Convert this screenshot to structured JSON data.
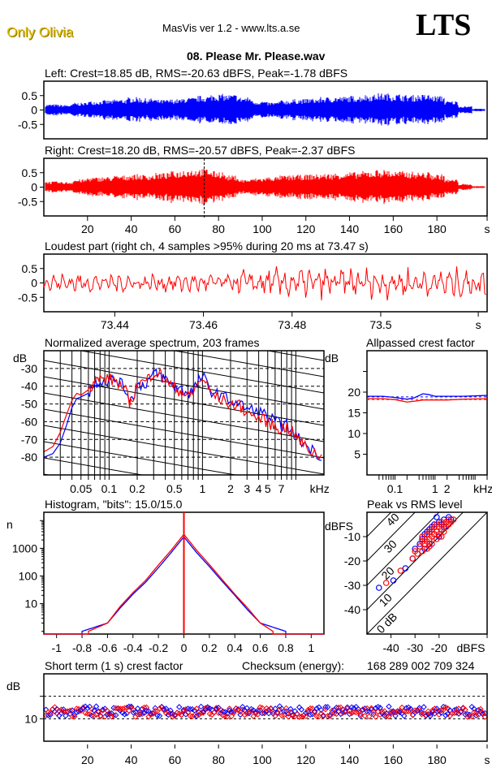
{
  "header": {
    "brand": "Only Olivia",
    "app_title": "MasVis ver 1.2 - www.lts.a.se",
    "logo": "LTS",
    "file_name": "08. Please Mr. Please.wav"
  },
  "colors": {
    "left": "#0000ff",
    "right": "#ff0000",
    "axis": "#000000",
    "brand": "#e8c400"
  },
  "chart_data": [
    {
      "id": "left-waveform",
      "type": "area",
      "title": "Left: Crest=18.85 dB, RMS=-20.63 dBFS, Peak=-1.78 dBFS",
      "channel": "left",
      "ylim": [
        -1,
        1
      ],
      "yticks": [
        "0.5",
        "0",
        "-0.5"
      ],
      "ytick_values": [
        0.5,
        0,
        -0.5
      ],
      "xlim": [
        0,
        203
      ],
      "envelope": [
        0.22,
        0.2,
        0.28,
        0.35,
        0.38,
        0.42,
        0.5,
        0.45,
        0.4,
        0.42,
        0.48,
        0.55,
        0.62,
        0.6,
        0.5,
        0.35,
        0.3,
        0.38,
        0.42,
        0.45,
        0.5,
        0.52,
        0.55,
        0.6,
        0.65,
        0.62,
        0.58,
        0.6,
        0.55,
        0.35,
        0.15,
        0.05
      ]
    },
    {
      "id": "right-waveform",
      "type": "area",
      "title": "Right: Crest=18.20 dB, RMS=-20.57 dBFS, Peak=-2.37 dBFS",
      "channel": "right",
      "ylim": [
        -1,
        1
      ],
      "yticks": [
        "0.5",
        "0",
        "-0.5"
      ],
      "ytick_values": [
        0.5,
        0,
        -0.5
      ],
      "xlim": [
        0,
        203
      ],
      "xticks": [
        "20",
        "40",
        "60",
        "80",
        "100",
        "120",
        "140",
        "160",
        "180",
        "s"
      ],
      "xtick_values": [
        20,
        40,
        60,
        80,
        100,
        120,
        140,
        160,
        180,
        203
      ],
      "marker_time": 73.47,
      "envelope": [
        0.22,
        0.2,
        0.3,
        0.38,
        0.4,
        0.45,
        0.5,
        0.48,
        0.55,
        0.62,
        0.7,
        0.72,
        0.62,
        0.45,
        0.3,
        0.35,
        0.4,
        0.45,
        0.48,
        0.5,
        0.52,
        0.55,
        0.58,
        0.62,
        0.68,
        0.62,
        0.6,
        0.58,
        0.5,
        0.3,
        0.12,
        0.04
      ]
    },
    {
      "id": "loudest-part",
      "type": "line",
      "title": "Loudest part (right ch, 4 samples >95% during 20 ms at 73.47 s)",
      "ylim": [
        -1,
        1
      ],
      "yticks": [
        "0.5",
        "0",
        "-0.5"
      ],
      "ytick_values": [
        0.5,
        0,
        -0.5
      ],
      "xlim": [
        73.424,
        73.524
      ],
      "xticks": [
        "73.44",
        "73.46",
        "73.48",
        "73.5",
        "s"
      ],
      "xtick_values": [
        73.44,
        73.46,
        73.48,
        73.5,
        73.522
      ]
    },
    {
      "id": "spectrum",
      "type": "line",
      "title": "Normalized average spectrum, 203 frames",
      "ylabel": "dB",
      "xlabel": "kHz",
      "ylim": [
        -90,
        -20
      ],
      "yticks": [
        "-30",
        "-40",
        "-50",
        "-60",
        "-70",
        "-80"
      ],
      "ytick_values": [
        -30,
        -40,
        -50,
        -60,
        -70,
        -80
      ],
      "xlim_hz": [
        20,
        20000
      ],
      "xticks": [
        "0.05",
        "0.1",
        "0.2",
        "0.5",
        "1",
        "2",
        "3",
        "4",
        "5",
        "7",
        "kHz"
      ],
      "xtick_values_hz": [
        50,
        100,
        200,
        500,
        1000,
        2000,
        3000,
        4000,
        5000,
        7000,
        18000
      ],
      "series": [
        {
          "name": "left",
          "freq_hz": [
            20,
            25,
            30,
            35,
            40,
            45,
            50,
            60,
            70,
            80,
            100,
            120,
            150,
            170,
            200,
            250,
            300,
            350,
            400,
            500,
            600,
            700,
            800,
            1000,
            1200,
            1500,
            2000,
            2500,
            3000,
            4000,
            5000,
            6000,
            7000,
            8000,
            10000,
            12000,
            15000,
            20000
          ],
          "db": [
            -80,
            -78,
            -72,
            -62,
            -52,
            -47,
            -46,
            -44,
            -38,
            -37,
            -37,
            -36,
            -42,
            -48,
            -40,
            -38,
            -33,
            -34,
            -36,
            -40,
            -42,
            -44,
            -42,
            -34,
            -42,
            -45,
            -48,
            -50,
            -53,
            -54,
            -57,
            -60,
            -62,
            -62,
            -68,
            -72,
            -76,
            -80
          ]
        },
        {
          "name": "right",
          "freq_hz": [
            20,
            25,
            30,
            35,
            40,
            45,
            50,
            60,
            70,
            80,
            100,
            120,
            150,
            170,
            200,
            250,
            300,
            350,
            400,
            500,
            600,
            700,
            800,
            1000,
            1200,
            1500,
            2000,
            2500,
            3000,
            4000,
            5000,
            6000,
            7000,
            8000,
            10000,
            12000,
            15000,
            20000
          ],
          "db": [
            -77,
            -74,
            -66,
            -56,
            -48,
            -44,
            -45,
            -42,
            -37,
            -36,
            -36,
            -37,
            -43,
            -50,
            -39,
            -37,
            -32,
            -33,
            -37,
            -41,
            -43,
            -46,
            -43,
            -35,
            -43,
            -47,
            -50,
            -51,
            -55,
            -58,
            -60,
            -63,
            -64,
            -63,
            -68,
            -73,
            -77,
            -80
          ]
        }
      ]
    },
    {
      "id": "allpassed-crest",
      "type": "line",
      "title": "Allpassed crest factor",
      "ylabel": "dB",
      "xlabel": "kHz",
      "ylim": [
        0,
        30
      ],
      "yticks": [
        "20",
        "15",
        "10",
        "5"
      ],
      "ytick_values": [
        20,
        15,
        10,
        5
      ],
      "xticks": [
        "0.1",
        "1",
        "2",
        "kHz"
      ],
      "xtick_values_hz": [
        100,
        1000,
        2000,
        16000
      ],
      "series": [
        {
          "name": "left",
          "freq_hz": [
            20,
            50,
            100,
            200,
            300,
            500,
            700,
            1000,
            2000,
            5000,
            20000
          ],
          "db": [
            19.0,
            19.0,
            18.7,
            18.3,
            18.6,
            19.6,
            19.4,
            19.0,
            19.0,
            19.0,
            19.2
          ],
          "reference": 18.85
        },
        {
          "name": "right",
          "freq_hz": [
            20,
            50,
            100,
            200,
            300,
            500,
            700,
            1000,
            2000,
            5000,
            20000
          ],
          "db": [
            18.4,
            18.4,
            18.2,
            17.6,
            17.8,
            18.1,
            18.1,
            18.1,
            18.1,
            18.3,
            18.4
          ],
          "reference": 18.2
        }
      ]
    },
    {
      "id": "histogram",
      "type": "line",
      "title": "Histogram, \"bits\": 15.0/15.0",
      "ylabel": "n",
      "yscale": "log",
      "ylim": [
        0.8,
        20000
      ],
      "yticks": [
        "1000",
        "100",
        "10"
      ],
      "ytick_values": [
        1000,
        100,
        10
      ],
      "xlim": [
        -1.1,
        1.1
      ],
      "xticks": [
        "-1",
        "-0.8",
        "-0.6",
        "-0.4",
        "-0.2",
        "0",
        "0.2",
        "0.4",
        "0.6",
        "0.8",
        "1"
      ],
      "xtick_values": [
        -1,
        -0.8,
        -0.6,
        -0.4,
        -0.2,
        0,
        0.2,
        0.4,
        0.6,
        0.8,
        1
      ],
      "series": [
        {
          "name": "left",
          "x": [
            -0.8,
            -0.6,
            -0.5,
            -0.4,
            -0.3,
            -0.2,
            -0.1,
            0,
            0.1,
            0.2,
            0.3,
            0.4,
            0.5,
            0.6,
            0.8
          ],
          "n": [
            1,
            2,
            7,
            22,
            60,
            200,
            700,
            2600,
            700,
            220,
            65,
            20,
            6,
            2,
            1
          ]
        },
        {
          "name": "right",
          "x": [
            -0.75,
            -0.6,
            -0.5,
            -0.4,
            -0.3,
            -0.2,
            -0.1,
            0,
            0.1,
            0.2,
            0.3,
            0.4,
            0.5,
            0.6,
            0.7
          ],
          "n": [
            1,
            2,
            8,
            25,
            70,
            250,
            850,
            3200,
            850,
            260,
            75,
            22,
            7,
            2,
            1
          ]
        }
      ]
    },
    {
      "id": "peak-vs-rms",
      "type": "scatter",
      "title": "Peak vs RMS level",
      "xlabel": "dBFS",
      "ylabel": "dBFS",
      "xlim": [
        -50,
        0
      ],
      "ylim": [
        -50,
        0
      ],
      "xticks": [
        "-40",
        "-30",
        "-20",
        "dBFS"
      ],
      "xtick_values": [
        -40,
        -30,
        -20,
        0
      ],
      "yticks": [
        "-10",
        "-20",
        "-30",
        "-40"
      ],
      "ytick_values": [
        -10,
        -20,
        -30,
        -40
      ],
      "diagonal_labels": [
        "40",
        "30",
        "20",
        "10",
        "0 dB"
      ],
      "diagonal_offsets": [
        40,
        30,
        20,
        10,
        0
      ],
      "series": [
        {
          "name": "left",
          "points": [
            [
              -45,
              -31
            ],
            [
              -39,
              -28
            ],
            [
              -34,
              -23
            ],
            [
              -31,
              -19
            ],
            [
              -30,
              -15
            ],
            [
              -28,
              -13
            ],
            [
              -27,
              -11
            ],
            [
              -26,
              -9
            ],
            [
              -25,
              -8
            ],
            [
              -24,
              -7
            ],
            [
              -23,
              -6
            ],
            [
              -22,
              -5
            ],
            [
              -21,
              -2
            ],
            [
              -20,
              -4
            ],
            [
              -19,
              -5
            ],
            [
              -18,
              -3
            ],
            [
              -17,
              -4
            ],
            [
              -16,
              -2
            ],
            [
              -20,
              -10
            ],
            [
              -24,
              -13
            ],
            [
              -26,
              -15
            ],
            [
              -22,
              -9
            ],
            [
              -18,
              -6
            ],
            [
              -15,
              -3
            ]
          ]
        },
        {
          "name": "right",
          "points": [
            [
              -42,
              -29
            ],
            [
              -36,
              -24
            ],
            [
              -31,
              -19
            ],
            [
              -30,
              -16
            ],
            [
              -29,
              -17
            ],
            [
              -28,
              -14
            ],
            [
              -27,
              -12
            ],
            [
              -27,
              -10
            ],
            [
              -26,
              -13
            ],
            [
              -26,
              -11
            ],
            [
              -25,
              -9
            ],
            [
              -25,
              -12
            ],
            [
              -24,
              -8
            ],
            [
              -24,
              -11
            ],
            [
              -23,
              -7
            ],
            [
              -23,
              -10
            ],
            [
              -22,
              -6
            ],
            [
              -22,
              -9
            ],
            [
              -21,
              -5
            ],
            [
              -21,
              -8
            ],
            [
              -20,
              -6
            ],
            [
              -20,
              -9
            ],
            [
              -19,
              -4
            ],
            [
              -19,
              -7
            ],
            [
              -18,
              -5
            ],
            [
              -18,
              -8
            ],
            [
              -17,
              -4
            ],
            [
              -17,
              -6
            ],
            [
              -16,
              -3
            ],
            [
              -16,
              -5
            ],
            [
              -15,
              -4
            ],
            [
              -14,
              -3
            ],
            [
              -25,
              -15
            ],
            [
              -23,
              -13
            ],
            [
              -21,
              -11
            ],
            [
              -19,
              -10
            ],
            [
              -27,
              -16
            ],
            [
              -24,
              -14
            ]
          ]
        }
      ]
    },
    {
      "id": "short-term-crest",
      "type": "scatter",
      "title": "Short term (1 s) crest factor",
      "ylabel": "dB",
      "ylim": [
        5,
        20
      ],
      "yticks": [
        "10"
      ],
      "ytick_values": [
        10
      ],
      "dashed_lines": [
        10,
        15
      ],
      "xlim": [
        0,
        203
      ],
      "xticks": [
        "20",
        "40",
        "60",
        "80",
        "100",
        "120",
        "140",
        "160",
        "180",
        "s"
      ],
      "xtick_values": [
        20,
        40,
        60,
        80,
        100,
        120,
        140,
        160,
        180,
        203
      ]
    }
  ],
  "checksum": {
    "label": "Checksum (energy):",
    "value": "168 289 002 709 324"
  }
}
